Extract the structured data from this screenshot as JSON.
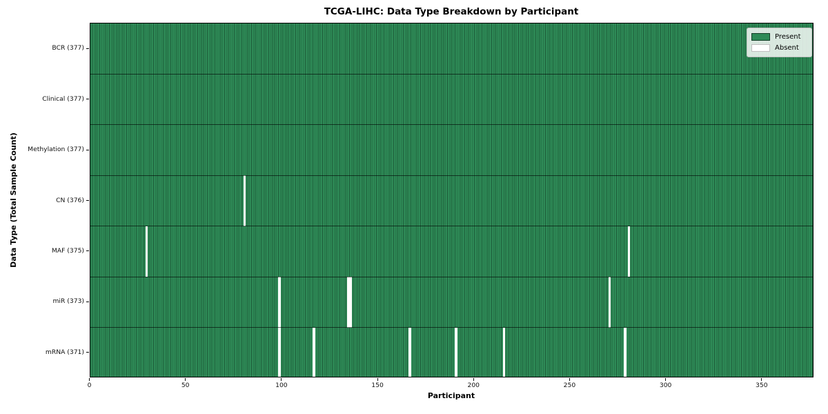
{
  "chart_data": {
    "type": "heatmap",
    "title": "TCGA-LIHC: Data Type Breakdown by Participant",
    "xlabel": "Participant",
    "ylabel": "Data Type (Total Sample Count)",
    "x_range": [
      0,
      377
    ],
    "x_ticks": [
      0,
      50,
      100,
      150,
      200,
      250,
      300,
      350
    ],
    "n_participants": 377,
    "grid": true,
    "legend": {
      "position": "upper right",
      "entries": [
        {
          "label": "Present",
          "color": "#2e8b57"
        },
        {
          "label": "Absent",
          "color": "#ffffff"
        }
      ]
    },
    "rows": [
      {
        "label": "BCR (377)",
        "data_type": "BCR",
        "present_count": 377,
        "absent_participants": []
      },
      {
        "label": "Clinical (377)",
        "data_type": "Clinical",
        "present_count": 377,
        "absent_participants": []
      },
      {
        "label": "Methylation (377)",
        "data_type": "Methylation",
        "present_count": 377,
        "absent_participants": []
      },
      {
        "label": "CN (376)",
        "data_type": "CN",
        "present_count": 376,
        "absent_participants": [
          80
        ]
      },
      {
        "label": "MAF (375)",
        "data_type": "MAF",
        "present_count": 375,
        "absent_participants": [
          29,
          280
        ]
      },
      {
        "label": "miR (373)",
        "data_type": "miR",
        "present_count": 373,
        "absent_participants": [
          98,
          134,
          135,
          270
        ]
      },
      {
        "label": "mRNA (371)",
        "data_type": "mRNA",
        "present_count": 371,
        "absent_participants": [
          98,
          116,
          166,
          190,
          215,
          278
        ]
      }
    ],
    "colors": {
      "present": "#2e8b57",
      "present_grid": "#1d5c39",
      "absent": "#ffffff",
      "row_separator": "rgba(0,0,0,0.6)",
      "axis": "#000000"
    }
  }
}
